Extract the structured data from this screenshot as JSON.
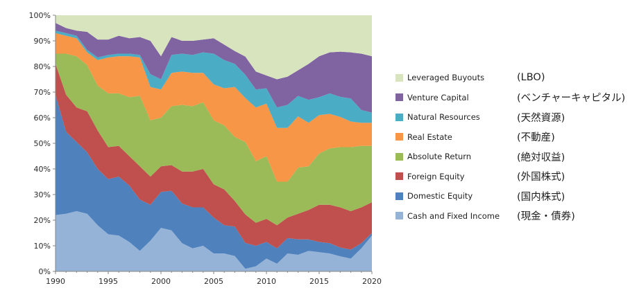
{
  "chart_data": {
    "type": "area",
    "stacked": true,
    "percent": true,
    "x": [
      1990,
      1991,
      1992,
      1993,
      1994,
      1995,
      1996,
      1997,
      1998,
      1999,
      2000,
      2001,
      2002,
      2003,
      2004,
      2005,
      2006,
      2007,
      2008,
      2009,
      2010,
      2011,
      2012,
      2013,
      2014,
      2015,
      2016,
      2017,
      2018,
      2019,
      2020
    ],
    "xlim": [
      1990,
      2020
    ],
    "ylim": [
      0,
      100
    ],
    "xticks": [
      "1990",
      "1995",
      "2000",
      "2005",
      "2010",
      "2015",
      "2020"
    ],
    "yticks": [
      "0%",
      "10%",
      "20%",
      "30%",
      "40%",
      "50%",
      "60%",
      "70%",
      "80%",
      "90%",
      "100%"
    ],
    "grid": false,
    "legend_position": "right",
    "series": [
      {
        "name": "Cash and Fixed Income",
        "jp": "(現金・債券)",
        "color": "#95b3d7",
        "values": [
          22,
          22.5,
          23.5,
          22.5,
          18,
          14.5,
          14,
          11.5,
          8,
          12,
          17,
          16,
          11,
          9,
          10,
          7,
          7,
          6,
          1,
          2,
          5,
          3,
          7,
          6.5,
          8,
          7.5,
          7,
          6,
          5,
          9,
          14
        ]
      },
      {
        "name": "Domestic Equity",
        "jp": "(国内株式)",
        "color": "#4f81bd",
        "values": [
          47,
          32,
          27,
          24,
          22,
          21.5,
          23,
          22,
          20,
          14,
          14,
          15.5,
          15.5,
          16,
          15,
          14,
          11,
          11.5,
          10,
          8,
          6.5,
          6,
          6,
          6,
          4.5,
          4,
          4,
          3.5,
          3.5,
          2,
          1
        ]
      },
      {
        "name": "Foreign Equity",
        "jp": "(外国株式)",
        "color": "#c0504d",
        "values": [
          12,
          14.5,
          13.5,
          16,
          15,
          12.5,
          12,
          11.5,
          13,
          11,
          10,
          10,
          12.5,
          14,
          15,
          13,
          14,
          10,
          11,
          9,
          9,
          9,
          8,
          10,
          11.5,
          14.5,
          15,
          16,
          15,
          14,
          12
        ]
      },
      {
        "name": "Absolute Return",
        "jp": "(絶対収益)",
        "color": "#9bbb59",
        "values": [
          4,
          16,
          20,
          18,
          17.5,
          21,
          20.5,
          23,
          27.5,
          22,
          19,
          23,
          26,
          25.5,
          26,
          25,
          25,
          25,
          28,
          24,
          24.5,
          17,
          14,
          18,
          17,
          20,
          22,
          24,
          25,
          24,
          22
        ]
      },
      {
        "name": "Real Estate",
        "jp": "(不動産)",
        "color": "#f79646",
        "values": [
          8,
          7,
          7,
          5,
          10,
          14,
          14.5,
          16,
          15,
          13,
          11,
          13,
          13,
          13,
          11.5,
          14,
          14.5,
          19.5,
          17,
          21,
          20.5,
          21,
          21,
          20,
          17,
          15,
          13.5,
          12,
          10,
          9,
          9
        ]
      },
      {
        "name": "Natural Resources",
        "jp": "(天然資源)",
        "color": "#4bacc6",
        "values": [
          1,
          1,
          1,
          1,
          1,
          1,
          1,
          1,
          1,
          5,
          4,
          7,
          7,
          7,
          8,
          12,
          11,
          9,
          9,
          7,
          6,
          8,
          9,
          8,
          9,
          7,
          8,
          8,
          9,
          5,
          4
        ]
      },
      {
        "name": "Venture Capital",
        "jp": "(ベンチャーキャピタル)",
        "color": "#8064a2",
        "values": [
          3,
          2,
          2,
          7,
          7,
          6,
          7,
          6,
          7,
          13,
          9,
          7,
          5,
          5.5,
          5,
          6,
          6,
          5,
          7,
          7,
          5,
          11,
          11,
          10,
          14,
          16,
          16,
          18,
          18,
          22,
          22
        ]
      },
      {
        "name": "Leveraged Buyouts",
        "jp": "(LBO)",
        "color": "#d7e4bd",
        "values": [
          3,
          5,
          6,
          6.5,
          9.5,
          9.5,
          8,
          9,
          8.5,
          10,
          16,
          8.5,
          10,
          10,
          9.5,
          9,
          11.5,
          14,
          16,
          22,
          23.5,
          25,
          24,
          21.5,
          19,
          16,
          14.5,
          14.5,
          14.5,
          15,
          16
        ]
      }
    ]
  }
}
